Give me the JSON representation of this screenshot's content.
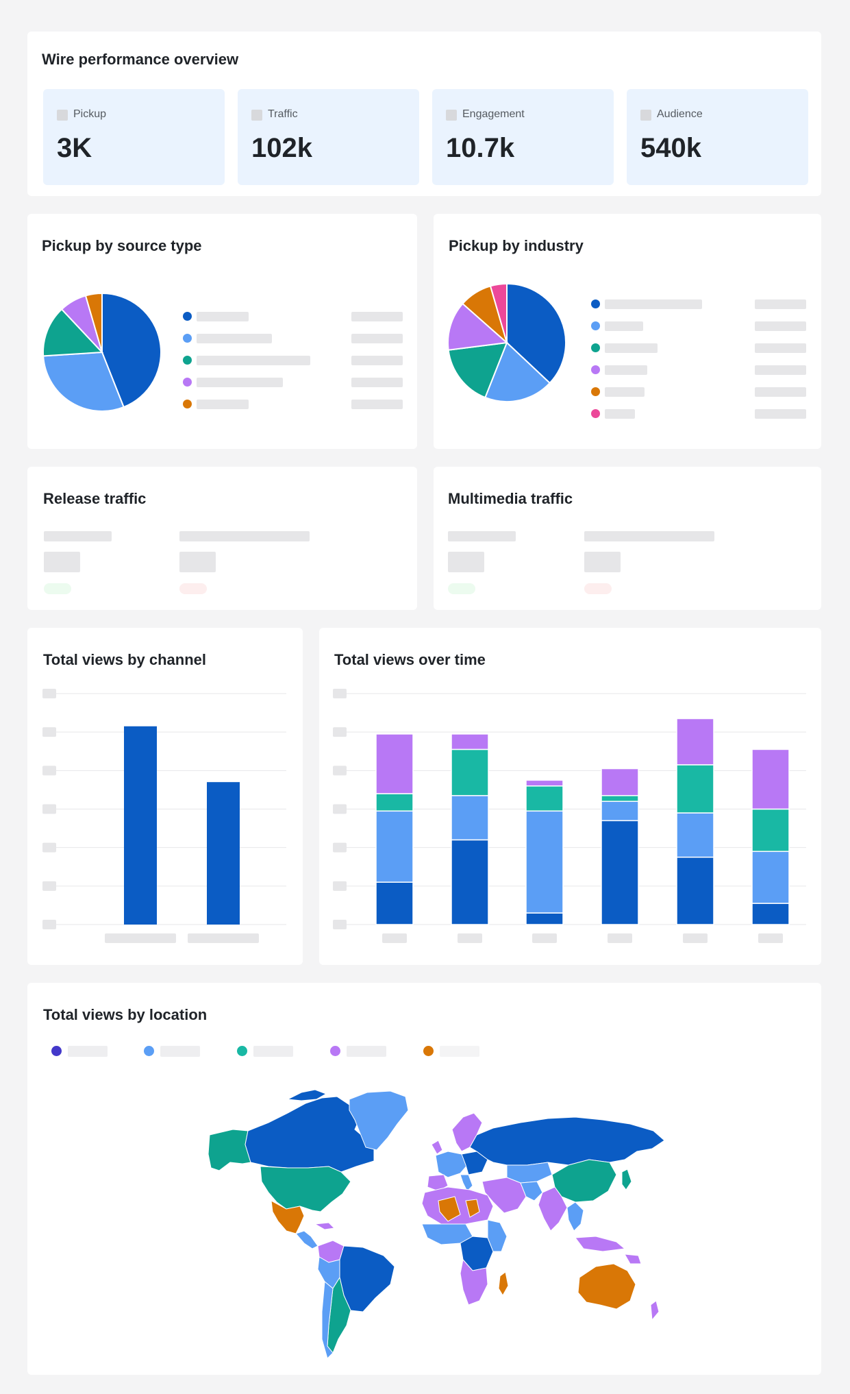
{
  "overview": {
    "title": "Wire performance overview",
    "metrics": [
      {
        "label": "Pickup",
        "value": "3K"
      },
      {
        "label": "Traffic",
        "value": "102k"
      },
      {
        "label": "Engagement",
        "value": "10.7k"
      },
      {
        "label": "Audience",
        "value": "540k"
      }
    ]
  },
  "pickup_source": {
    "title": "Pickup by source type",
    "colors": [
      "#0b5cc4",
      "#5b9ef5",
      "#0ea38f",
      "#b878f5",
      "#d97706"
    ]
  },
  "pickup_industry": {
    "title": "Pickup by industry",
    "colors": [
      "#0b5cc4",
      "#5b9ef5",
      "#0ea38f",
      "#b878f5",
      "#d97706",
      "#ec4899"
    ]
  },
  "release_traffic": {
    "title": "Release traffic"
  },
  "multimedia_traffic": {
    "title": "Multimedia traffic"
  },
  "views_channel": {
    "title": "Total views by channel"
  },
  "views_time": {
    "title": "Total views over time"
  },
  "views_location": {
    "title": "Total views by location",
    "colors": [
      "#4338ca",
      "#5b9ef5",
      "#19b8a4",
      "#b878f5",
      "#d97706"
    ]
  },
  "chart_data": [
    {
      "type": "pie",
      "title": "Pickup by source type",
      "slices": [
        {
          "value": 44,
          "color": "#0b5cc4"
        },
        {
          "value": 30,
          "color": "#5b9ef5"
        },
        {
          "value": 14,
          "color": "#0ea38f"
        },
        {
          "value": 7.5,
          "color": "#b878f5"
        },
        {
          "value": 4.5,
          "color": "#d97706"
        }
      ]
    },
    {
      "type": "pie",
      "title": "Pickup by industry",
      "slices": [
        {
          "value": 37,
          "color": "#0b5cc4"
        },
        {
          "value": 19,
          "color": "#5b9ef5"
        },
        {
          "value": 17,
          "color": "#0ea38f"
        },
        {
          "value": 13.5,
          "color": "#b878f5"
        },
        {
          "value": 9,
          "color": "#d97706"
        },
        {
          "value": 4.5,
          "color": "#ec4899"
        }
      ]
    },
    {
      "type": "bar",
      "title": "Total views by channel",
      "ylim": [
        0,
        6
      ],
      "values": [
        5.15,
        3.7
      ],
      "color": "#0b5cc4"
    },
    {
      "type": "bar",
      "title": "Total views over time",
      "stacked": true,
      "ylim": [
        0,
        6
      ],
      "series": [
        {
          "color": "#0b5cc4",
          "values": [
            1.1,
            2.2,
            0.3,
            2.7,
            1.75,
            0.55
          ]
        },
        {
          "color": "#5b9ef5",
          "values": [
            1.85,
            1.15,
            2.65,
            0.5,
            1.15,
            1.35
          ]
        },
        {
          "color": "#19b8a4",
          "values": [
            0.45,
            1.2,
            0.65,
            0.15,
            1.25,
            1.1
          ]
        },
        {
          "color": "#b878f5",
          "values": [
            1.55,
            0.4,
            0.15,
            0.7,
            1.2,
            1.55
          ]
        }
      ]
    }
  ]
}
